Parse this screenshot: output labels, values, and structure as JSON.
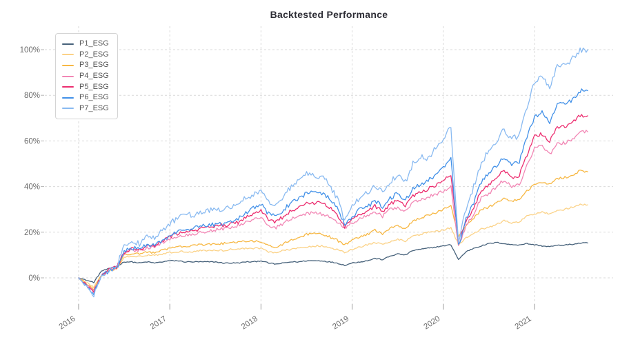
{
  "chart_data": {
    "type": "line",
    "title": "Backtested Performance",
    "x_axis": {
      "start": "2016-01",
      "step": "month",
      "tick_labels": [
        "2016",
        "2017",
        "2018",
        "2019",
        "2020",
        "2021"
      ],
      "tick_month_indices": [
        0,
        12,
        24,
        36,
        48,
        60
      ],
      "label_rotation_deg": -33
    },
    "y_axis": {
      "unit": "%",
      "tick_labels": [
        "0%",
        "20%",
        "40%",
        "60%",
        "80%",
        "100%"
      ],
      "tick_values": [
        0,
        20,
        40,
        60,
        80,
        100
      ],
      "visible_range": [
        -12,
        110
      ]
    },
    "grid": {
      "visible": true,
      "style": "dashed",
      "color": "#d9d9d9"
    },
    "legend": {
      "position": "upper-left",
      "entries": [
        "P1_ESG",
        "P2_ESG",
        "P3_ESG",
        "P4_ESG",
        "P5_ESG",
        "P6_ESG",
        "P7_ESG"
      ]
    },
    "series": [
      {
        "name": "P1_ESG",
        "color": "#46617a",
        "values": [
          0,
          -1,
          -2,
          3,
          4,
          5,
          7,
          7,
          6.5,
          7,
          6.5,
          7,
          7.5,
          7.5,
          7,
          7,
          7,
          7,
          7,
          6.5,
          6.5,
          6.5,
          7,
          7,
          7.5,
          6.5,
          6,
          6.5,
          7,
          7,
          7.5,
          7.5,
          7.5,
          7,
          6.5,
          5.5,
          6.5,
          7,
          7.5,
          8.5,
          8,
          9.5,
          10.5,
          10,
          12,
          12.5,
          13,
          13.5,
          14,
          14.5,
          8,
          11.5,
          13,
          14,
          15,
          15.5,
          15,
          14.5,
          14.5,
          15,
          14.5,
          14,
          13.7,
          14.2,
          14.4,
          14.7,
          15.2,
          15.3
        ]
      },
      {
        "name": "P2_ESG",
        "color": "#fbd287",
        "values": [
          0,
          -2,
          -4,
          1,
          3,
          4,
          9,
          9.5,
          9.5,
          10,
          10,
          10.5,
          11,
          11.5,
          11.5,
          11.5,
          12,
          12,
          12,
          12,
          12.5,
          12.5,
          13,
          13,
          13,
          11.5,
          11,
          12,
          12.5,
          13,
          13.5,
          14,
          14,
          13,
          12.5,
          11,
          12.5,
          13.5,
          14.5,
          15.5,
          14.5,
          16,
          17,
          16,
          18.5,
          19,
          20,
          20.5,
          21,
          22,
          14.5,
          17.5,
          19.5,
          21.5,
          22,
          23.5,
          25,
          24,
          24.5,
          27,
          28,
          29,
          28,
          29.5,
          30,
          31,
          32,
          32
        ]
      },
      {
        "name": "P3_ESG",
        "color": "#f7b844",
        "values": [
          0,
          -2.5,
          -5,
          1,
          3,
          4,
          10,
          10.5,
          10.5,
          11.5,
          11,
          12,
          13,
          13.5,
          14,
          14,
          14.5,
          14.5,
          15,
          15,
          15.5,
          15.5,
          16,
          16,
          16,
          14,
          13.5,
          15,
          16.5,
          17.5,
          19,
          19.5,
          19,
          18,
          16.5,
          14.5,
          16.5,
          18,
          19,
          21,
          19,
          22,
          23,
          21.5,
          25,
          26,
          27.5,
          28.5,
          30,
          32,
          18,
          23,
          26,
          30,
          31,
          33,
          35,
          33.5,
          34.5,
          38,
          41,
          42,
          41,
          43.5,
          44,
          45,
          47,
          46.5
        ]
      },
      {
        "name": "P4_ESG",
        "color": "#f287b5",
        "values": [
          0,
          -3,
          -5.5,
          1,
          3.5,
          4.5,
          11,
          12,
          12,
          13,
          13.5,
          15.5,
          17,
          18,
          18.5,
          19,
          20,
          20.5,
          21,
          21.5,
          22,
          23,
          24.5,
          25.5,
          26.5,
          23,
          22,
          24,
          26,
          27,
          28,
          28.5,
          28,
          27,
          24.5,
          21.5,
          24,
          26,
          27,
          29,
          27,
          30,
          31,
          29,
          33,
          34,
          35.5,
          36.5,
          38,
          40,
          13.5,
          23,
          28,
          35,
          37,
          40,
          43,
          40,
          41,
          49,
          57,
          58,
          54,
          59,
          59,
          61,
          64,
          64
        ]
      },
      {
        "name": "P5_ESG",
        "color": "#ec2d6f",
        "values": [
          0,
          -3,
          -6,
          1,
          3.5,
          4.5,
          11,
          12.5,
          12.5,
          13.5,
          14,
          16,
          18,
          19.5,
          20,
          20.5,
          21.5,
          22,
          22.5,
          23,
          23.5,
          24.5,
          26.5,
          28,
          29.5,
          25.5,
          24.5,
          27,
          29.5,
          31,
          32.5,
          33,
          32.5,
          31,
          28,
          22.5,
          25.5,
          28,
          29,
          31.5,
          29,
          32.5,
          34,
          31.5,
          36,
          37.5,
          39,
          40.5,
          42.5,
          45,
          15.5,
          25,
          31,
          38,
          41,
          44,
          47,
          44,
          45,
          54,
          62,
          63,
          60,
          66,
          66,
          68,
          71,
          71
        ]
      },
      {
        "name": "P6_ESG",
        "color": "#4190e8",
        "values": [
          0,
          -3.5,
          -7,
          1,
          3,
          4,
          12,
          13,
          13,
          14,
          14.5,
          16.5,
          18.5,
          20,
          21,
          21.5,
          22.5,
          23,
          23.5,
          24,
          25,
          26,
          28.5,
          30.5,
          32.5,
          28,
          27,
          30,
          33,
          35,
          37,
          37.5,
          37,
          35,
          31,
          23.5,
          27,
          30,
          31,
          34,
          31,
          35,
          37,
          34,
          39,
          41,
          43,
          45,
          48,
          52,
          14,
          26,
          33,
          42,
          46,
          49,
          53,
          50,
          51,
          62,
          70,
          73,
          68,
          76,
          76,
          78,
          82,
          82
        ]
      },
      {
        "name": "P7_ESG",
        "color": "#89baf1",
        "values": [
          0,
          -4,
          -8,
          1,
          3,
          5,
          14,
          16,
          15,
          18,
          17.5,
          21,
          24,
          26,
          28,
          27.5,
          29,
          29.5,
          30,
          30.5,
          31,
          33,
          35,
          36.5,
          38.5,
          33.5,
          32.5,
          36,
          40,
          42.5,
          46,
          45,
          44,
          41,
          35,
          25.5,
          31,
          35,
          37,
          41,
          37,
          42,
          45,
          42,
          50,
          53,
          52,
          57,
          61,
          66,
          16,
          30,
          40,
          50,
          56,
          60,
          65,
          61,
          62,
          75,
          86,
          89,
          83,
          93,
          93,
          96,
          100,
          100
        ]
      }
    ],
    "colors": {
      "background": "#ffffff",
      "title_text": "#2d2d35",
      "tick_text": "#6b6b6b",
      "legend_text": "#555555",
      "legend_border": "#d4d4d4",
      "grid": "#d9d9d9"
    }
  }
}
